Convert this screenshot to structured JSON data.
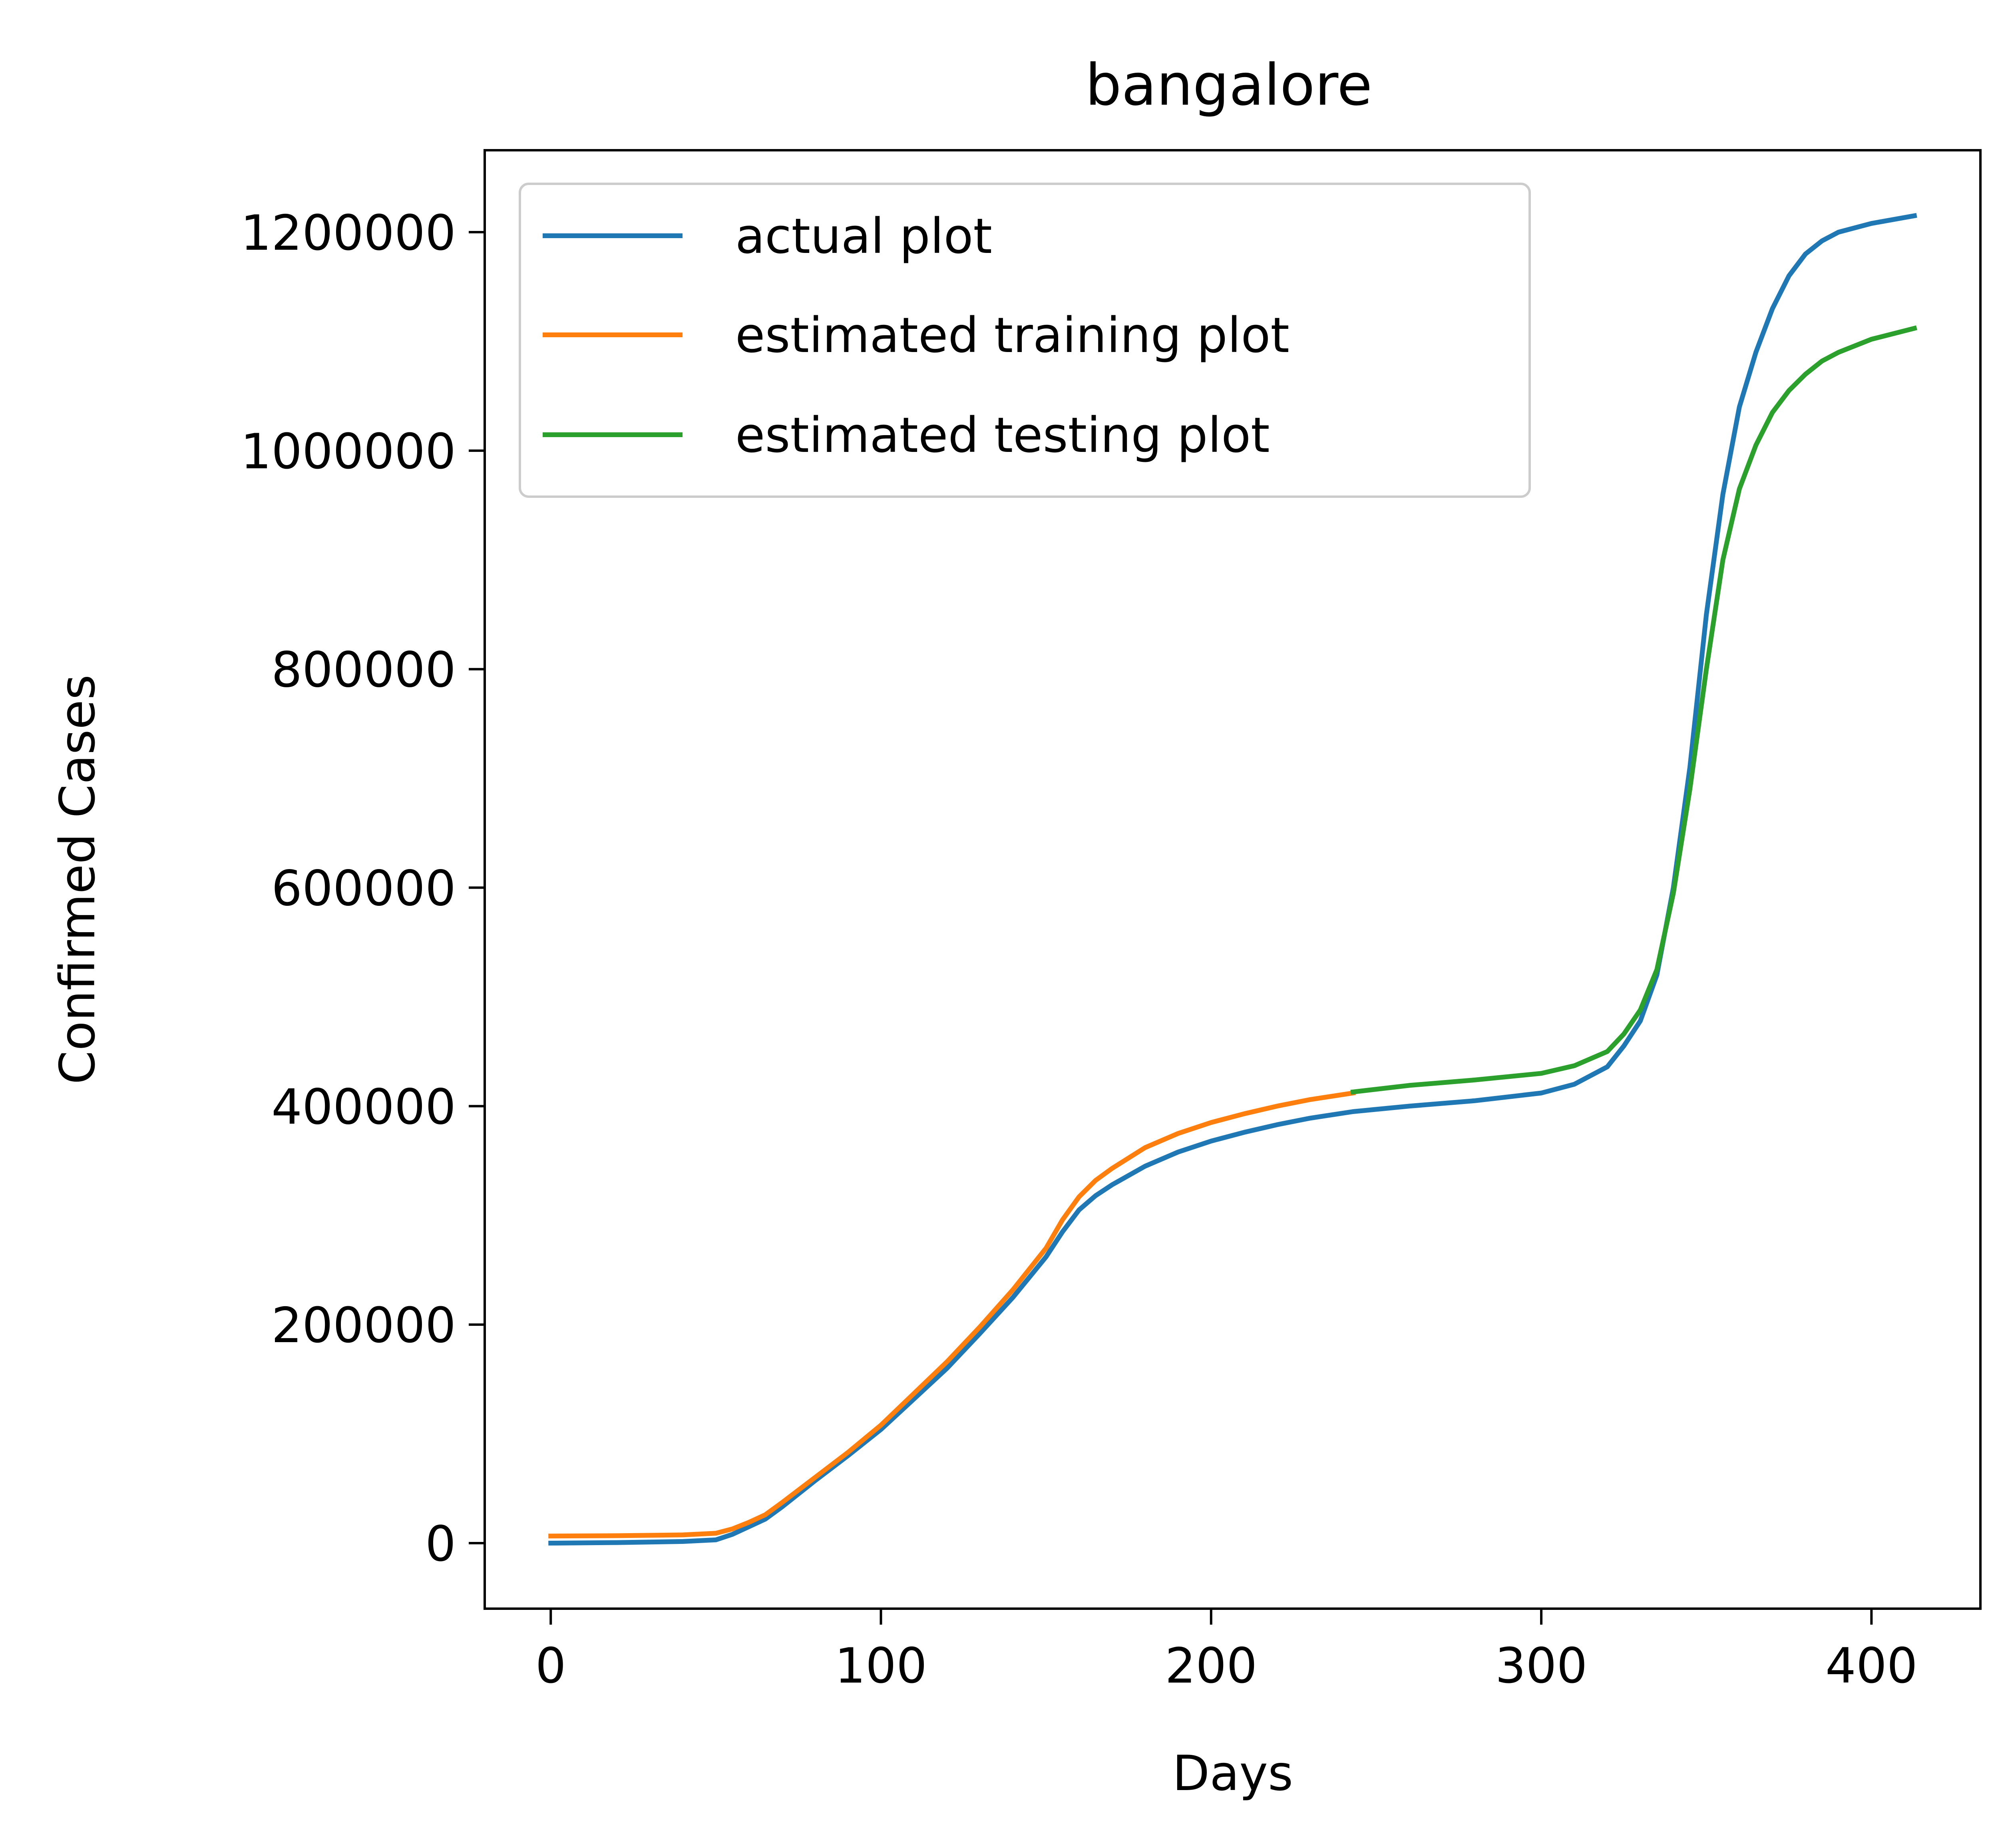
{
  "chart_data": {
    "type": "line",
    "title": "bangalore",
    "xlabel": "Days",
    "ylabel": "Confirmed Cases",
    "xlim": [
      -20,
      433
    ],
    "ylim": [
      -60000,
      1275000
    ],
    "xticks": [
      0,
      100,
      200,
      300,
      400
    ],
    "yticks": [
      0,
      200000,
      400000,
      600000,
      800000,
      1000000,
      1200000
    ],
    "xtick_labels": [
      "0",
      "100",
      "200",
      "300",
      "400"
    ],
    "ytick_labels": [
      "0",
      "200000",
      "400000",
      "600000",
      "800000",
      "1000000",
      "1200000"
    ],
    "grid": false,
    "legend_position": "upper-left",
    "series": [
      {
        "name": "actual plot",
        "color": "#1f77b4",
        "x": [
          0,
          20,
          40,
          50,
          55,
          60,
          65,
          70,
          80,
          90,
          100,
          110,
          120,
          130,
          140,
          150,
          155,
          160,
          165,
          170,
          180,
          190,
          200,
          210,
          220,
          230,
          243,
          260,
          280,
          300,
          310,
          320,
          325,
          330,
          335,
          340,
          345,
          350,
          355,
          360,
          365,
          370,
          375,
          380,
          385,
          390,
          400,
          413
        ],
        "y": [
          0,
          500,
          1500,
          3000,
          8000,
          15000,
          22000,
          33000,
          57000,
          80000,
          104000,
          132000,
          160000,
          192000,
          225000,
          262000,
          285000,
          305000,
          318000,
          328000,
          345000,
          358000,
          368000,
          376000,
          383000,
          389000,
          395000,
          400000,
          405000,
          412000,
          420000,
          436000,
          455000,
          478000,
          520000,
          600000,
          710000,
          850000,
          960000,
          1040000,
          1090000,
          1130000,
          1160000,
          1180000,
          1192000,
          1200000,
          1208000,
          1215000
        ]
      },
      {
        "name": "estimated training plot",
        "color": "#ff7f0e",
        "x": [
          0,
          20,
          40,
          50,
          55,
          60,
          65,
          70,
          80,
          90,
          100,
          110,
          120,
          130,
          140,
          150,
          155,
          160,
          165,
          170,
          180,
          190,
          200,
          210,
          220,
          230,
          243
        ],
        "y": [
          6500,
          6800,
          7500,
          9000,
          13000,
          19000,
          26000,
          37000,
          60000,
          83000,
          108000,
          137000,
          166000,
          198000,
          232000,
          270000,
          296000,
          317000,
          332000,
          343000,
          362000,
          375000,
          385000,
          393000,
          400000,
          406000,
          412000
        ]
      },
      {
        "name": "estimated testing plot",
        "color": "#2ca02c",
        "x": [
          243,
          260,
          280,
          300,
          310,
          320,
          325,
          330,
          335,
          340,
          345,
          350,
          355,
          360,
          365,
          370,
          375,
          380,
          385,
          390,
          400,
          413
        ],
        "y": [
          413000,
          419000,
          424000,
          430000,
          437000,
          450000,
          466000,
          488000,
          525000,
          595000,
          690000,
          800000,
          900000,
          965000,
          1005000,
          1035000,
          1055000,
          1070000,
          1082000,
          1090000,
          1102000,
          1112000
        ]
      }
    ]
  }
}
